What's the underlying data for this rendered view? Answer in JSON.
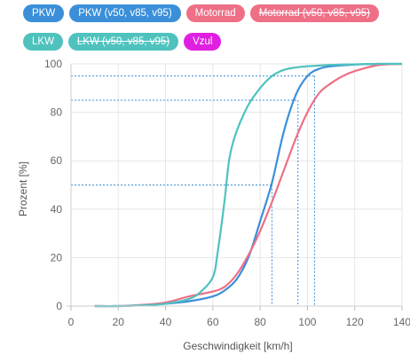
{
  "legend": {
    "items": [
      {
        "label": "PKW",
        "color": "#3a8fd8",
        "struck": false
      },
      {
        "label": "PKW (v50, v85, v95)",
        "color": "#3a8fd8",
        "struck": false
      },
      {
        "label": "Motorrad",
        "color": "#ee6f86",
        "struck": false
      },
      {
        "label": "Motorrad (v50, v85, v95)",
        "color": "#ee6f86",
        "struck": true
      },
      {
        "label": "LKW",
        "color": "#4fc2be",
        "struck": false
      },
      {
        "label": "LKW (v50, v85, v95)",
        "color": "#4fc2be",
        "struck": true
      },
      {
        "label": "Vzul",
        "color": "#e020e0",
        "struck": false
      }
    ]
  },
  "chart_data": {
    "type": "line",
    "xlabel": "Geschwindigkeit [km/h]",
    "ylabel": "Prozent [%]",
    "xlim": [
      0,
      140
    ],
    "ylim": [
      0,
      100
    ],
    "xticks": [
      0,
      20,
      40,
      60,
      80,
      100,
      120,
      140
    ],
    "yticks": [
      0,
      20,
      40,
      60,
      80,
      100
    ],
    "grid": true,
    "series": [
      {
        "name": "PKW",
        "color": "#3a8fd8",
        "x": [
          10,
          20,
          30,
          40,
          50,
          60,
          65,
          70,
          75,
          80,
          85,
          90,
          95,
          100,
          105,
          110,
          120,
          130,
          140
        ],
        "y": [
          0,
          0,
          0.3,
          1,
          2,
          4,
          6.5,
          11,
          20,
          35,
          51,
          72,
          87,
          95,
          98,
          99,
          99.7,
          100,
          100
        ]
      },
      {
        "name": "Motorrad",
        "color": "#ee6f86",
        "x": [
          10,
          20,
          30,
          40,
          50,
          60,
          65,
          70,
          75,
          80,
          85,
          90,
          95,
          100,
          105,
          110,
          115,
          120,
          130,
          140
        ],
        "y": [
          0,
          0,
          0.5,
          1.5,
          4,
          6,
          8,
          13,
          21,
          31,
          43,
          56,
          69,
          80,
          88,
          92,
          95,
          97,
          99.5,
          100
        ]
      },
      {
        "name": "LKW",
        "color": "#4fc2be",
        "x": [
          10,
          20,
          30,
          40,
          50,
          55,
          60,
          62,
          65,
          67,
          70,
          75,
          80,
          85,
          90,
          95,
          100,
          110,
          120,
          130,
          140
        ],
        "y": [
          0,
          0,
          0.3,
          1,
          3,
          6,
          12,
          22,
          44,
          61,
          72,
          83,
          90,
          95,
          97.5,
          98.5,
          99,
          99.6,
          99.8,
          100,
          100
        ]
      }
    ],
    "reference_lines": {
      "name": "PKW (v50, v85, v95)",
      "color": "#3a8fd8",
      "points": [
        {
          "label": "v50",
          "x": 85,
          "y": 50
        },
        {
          "label": "v85",
          "x": 96,
          "y": 85
        },
        {
          "label": "v95",
          "x": 103,
          "y": 95
        }
      ]
    }
  }
}
